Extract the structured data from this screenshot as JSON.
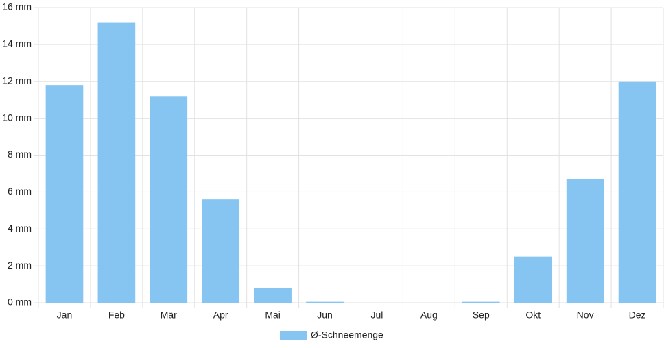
{
  "chart_data": {
    "type": "bar",
    "categories": [
      "Jan",
      "Feb",
      "Mär",
      "Apr",
      "Mai",
      "Jun",
      "Jul",
      "Aug",
      "Sep",
      "Okt",
      "Nov",
      "Dez"
    ],
    "series": [
      {
        "name": "Ø-Schneemenge",
        "color": "#86c5f1",
        "values": [
          11.8,
          15.2,
          11.2,
          5.6,
          0.8,
          0.05,
          0,
          0,
          0.05,
          2.5,
          6.7,
          12.0
        ]
      }
    ],
    "ylim": [
      0,
      16
    ],
    "yticks": [
      {
        "value": 0,
        "label": "0 mm"
      },
      {
        "value": 2,
        "label": "2 mm"
      },
      {
        "value": 4,
        "label": "4 mm"
      },
      {
        "value": 6,
        "label": "6 mm"
      },
      {
        "value": 8,
        "label": "8 mm"
      },
      {
        "value": 10,
        "label": "10 mm"
      },
      {
        "value": 12,
        "label": "12 mm"
      },
      {
        "value": 14,
        "label": "14 mm"
      },
      {
        "value": 16,
        "label": "16 mm"
      }
    ],
    "grid": true,
    "legend": "bottom"
  }
}
